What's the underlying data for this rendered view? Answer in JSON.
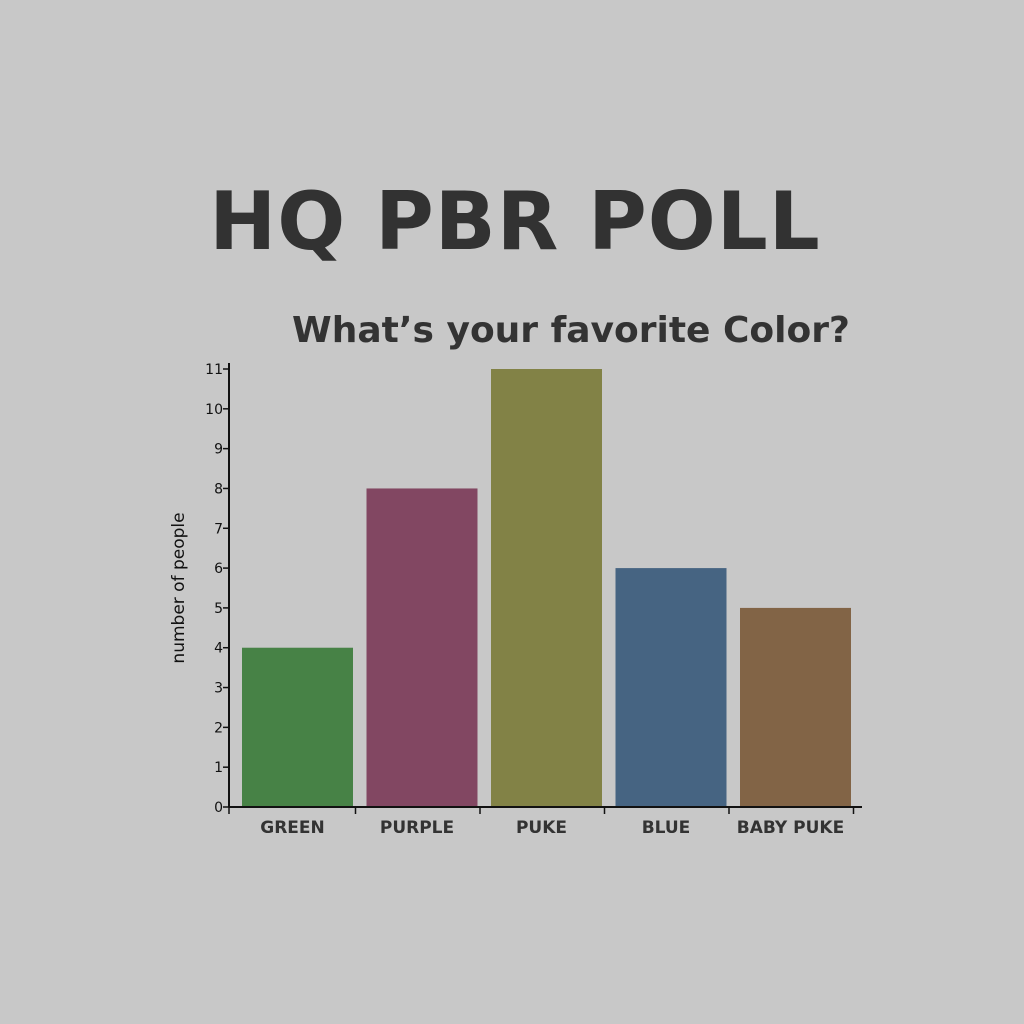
{
  "page": {
    "title": "HQ PBR POLL",
    "subtitle": "What’s your favorite Color?"
  },
  "chart_data": {
    "type": "bar",
    "title": "What’s your favorite Color?",
    "categories": [
      "GREEN",
      "PURPLE",
      "PUKE",
      "BLUE",
      "BABY PUKE"
    ],
    "values": [
      4,
      8,
      11,
      6,
      5
    ],
    "bar_colors": [
      "#478246",
      "#824762",
      "#828246",
      "#466482",
      "#826446"
    ],
    "xlabel": "",
    "ylabel": "number of people",
    "ylim": [
      0,
      11
    ],
    "yticks": [
      "0",
      "1",
      "2",
      "3",
      "4",
      "5",
      "6",
      "7",
      "8",
      "9",
      "10",
      "11"
    ],
    "grid": false,
    "legend": "none"
  }
}
